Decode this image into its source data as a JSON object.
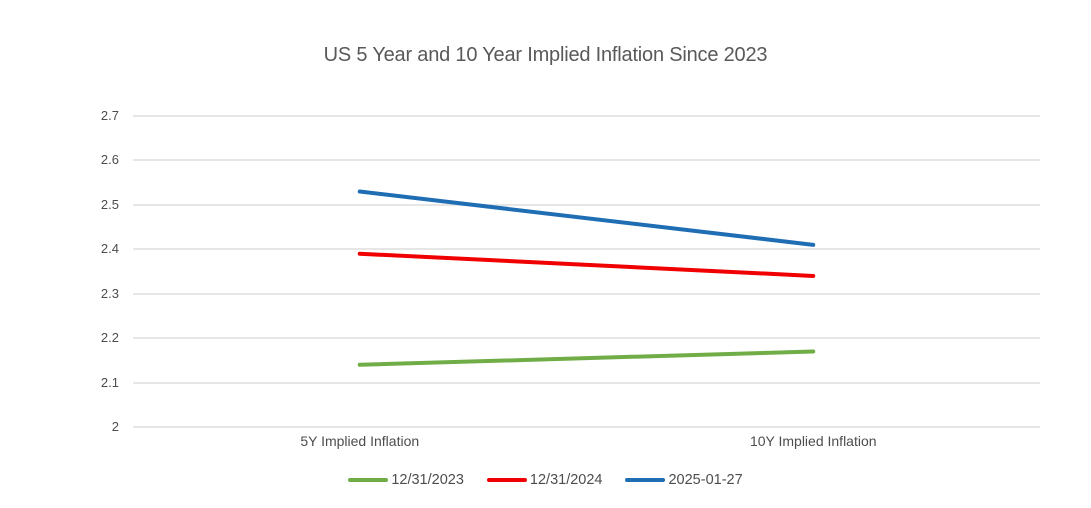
{
  "chart_data": {
    "type": "line",
    "title": "US 5 Year and 10 Year Implied Inflation Since 2023",
    "categories": [
      "5Y Implied Inflation",
      "10Y Implied Inflation"
    ],
    "series": [
      {
        "name": "12/31/2023",
        "color": "#70AD47",
        "values": [
          2.14,
          2.17
        ]
      },
      {
        "name": "12/31/2024",
        "color": "#F00000",
        "values": [
          2.39,
          2.34
        ]
      },
      {
        "name": "2025-01-27",
        "color": "#1F6EB4",
        "values": [
          2.53,
          2.41
        ]
      }
    ],
    "xlabel": "",
    "ylabel": "",
    "ylim": [
      2.0,
      2.7
    ],
    "ytick_step": 0.1,
    "ytick_labels": [
      "2.7",
      "2.6",
      "2.5",
      "2.4",
      "2.3",
      "2.2",
      "2.1",
      "2"
    ],
    "grid": true,
    "legend_position": "bottom"
  },
  "colors": {
    "grid": "#e6e6e6",
    "axis_text": "#4d4d4d",
    "title_text": "#595959",
    "background": "#ffffff"
  }
}
